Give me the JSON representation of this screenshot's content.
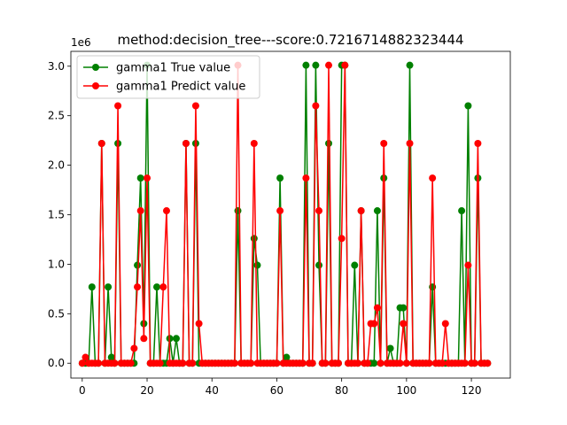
{
  "chart_data": {
    "type": "line",
    "title": "method:decision_tree---score:0.7216714882323444",
    "xlabel": "",
    "ylabel": "",
    "y_offset_label": "1e6",
    "xlim": [
      -3.5,
      132
    ],
    "ylim": [
      -150000,
      3150000
    ],
    "x_ticks": [
      0,
      20,
      40,
      60,
      80,
      100,
      120
    ],
    "y_ticks": [
      0,
      500000,
      1000000,
      1500000,
      2000000,
      2500000,
      3000000
    ],
    "y_tick_labels": [
      "0.0",
      "0.5",
      "1.0",
      "1.5",
      "2.0",
      "2.5",
      "3.0"
    ],
    "grid": false,
    "legend_position": "top-left",
    "series": [
      {
        "name": "gamma1 True value",
        "color": "#008000",
        "values": [
          0,
          0,
          0,
          770000,
          0,
          0,
          2220000,
          0,
          770000,
          60000,
          0,
          2220000,
          0,
          0,
          0,
          0,
          0,
          990000,
          1870000,
          400000,
          3010000,
          0,
          0,
          770000,
          0,
          0,
          0,
          250000,
          0,
          250000,
          0,
          0,
          2220000,
          0,
          0,
          2220000,
          0,
          0,
          0,
          0,
          0,
          0,
          0,
          0,
          0,
          0,
          0,
          0,
          1540000,
          0,
          0,
          0,
          0,
          1260000,
          990000,
          0,
          0,
          0,
          0,
          0,
          0,
          1870000,
          0,
          60000,
          0,
          0,
          0,
          0,
          0,
          3010000,
          0,
          0,
          3010000,
          990000,
          0,
          0,
          2220000,
          0,
          0,
          0,
          3010000,
          3010000,
          0,
          0,
          990000,
          0,
          1540000,
          0,
          0,
          0,
          0,
          1540000,
          0,
          1870000,
          0,
          150000,
          0,
          0,
          560000,
          560000,
          0,
          3010000,
          0,
          0,
          0,
          0,
          0,
          0,
          770000,
          0,
          0,
          0,
          0,
          0,
          0,
          0,
          0,
          1540000,
          0,
          2600000,
          0,
          0,
          1870000,
          0,
          0,
          0
        ]
      },
      {
        "name": "gamma1 Predict value",
        "color": "#ff0000",
        "values": [
          0,
          60000,
          0,
          0,
          0,
          0,
          2220000,
          0,
          0,
          0,
          0,
          2600000,
          0,
          0,
          0,
          0,
          150000,
          770000,
          1540000,
          250000,
          1870000,
          0,
          0,
          0,
          0,
          770000,
          1540000,
          0,
          0,
          0,
          0,
          0,
          2220000,
          0,
          0,
          2600000,
          400000,
          0,
          0,
          0,
          0,
          0,
          0,
          0,
          0,
          0,
          0,
          0,
          3010000,
          0,
          0,
          0,
          0,
          2220000,
          0,
          0,
          0,
          0,
          0,
          0,
          0,
          1540000,
          0,
          0,
          0,
          0,
          0,
          0,
          0,
          1870000,
          0,
          0,
          2600000,
          1540000,
          0,
          0,
          3010000,
          0,
          0,
          0,
          1260000,
          3010000,
          0,
          0,
          0,
          0,
          1540000,
          0,
          0,
          400000,
          400000,
          560000,
          0,
          2220000,
          0,
          0,
          0,
          0,
          0,
          400000,
          0,
          2220000,
          0,
          0,
          0,
          0,
          0,
          0,
          1870000,
          0,
          0,
          0,
          400000,
          0,
          0,
          0,
          0,
          0,
          0,
          990000,
          0,
          0,
          2220000,
          0,
          0,
          0
        ]
      }
    ]
  }
}
